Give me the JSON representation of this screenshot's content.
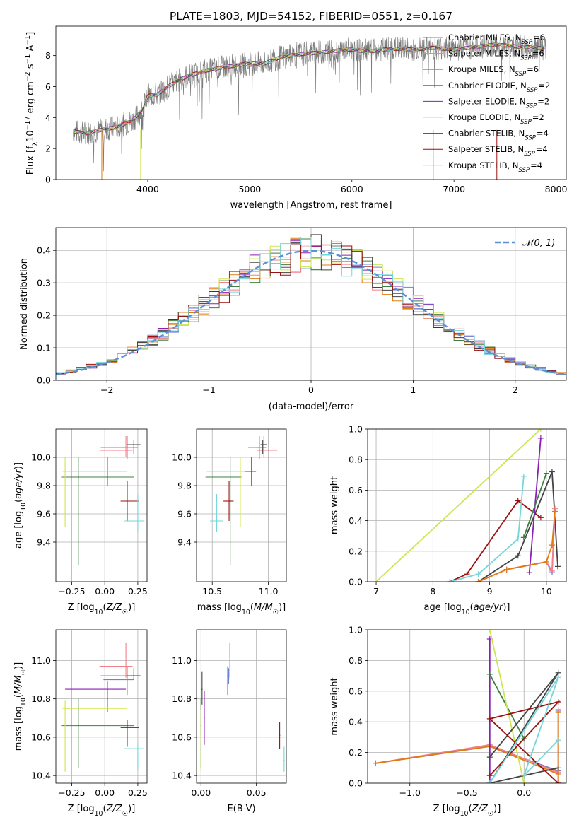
{
  "figure_title": "PLATE=1803, MJD=54152, FIBERID=0551, z=0.167",
  "colors": {
    "chabrier_miles": "#6b83d6",
    "salpeter_miles": "#f07f8a",
    "kroupa_miles": "#e07b12",
    "chabrier_elodie": "#3f7f3f",
    "salpeter_elodie": "#8b1fb5",
    "kroupa_elodie": "#cde64d",
    "chabrier_stelib": "#444444",
    "salpeter_stelib": "#9a0f0f",
    "kroupa_stelib": "#76d5d8",
    "normal_curve": "#5b8fd6",
    "grid": "#b0b0b0"
  },
  "legend_models": [
    {
      "key": "chabrier_miles",
      "label": "Chabrier MILES, N",
      "sub": "SSP",
      "suffix": "=6"
    },
    {
      "key": "salpeter_miles",
      "label": "Salpeter MILES, N",
      "sub": "SSP",
      "suffix": "=6"
    },
    {
      "key": "kroupa_miles",
      "label": "Kroupa MILES, N",
      "sub": "SSP",
      "suffix": "=6"
    },
    {
      "key": "chabrier_elodie",
      "label": "Chabrier ELODIE, N",
      "sub": "SSP",
      "suffix": "=2"
    },
    {
      "key": "salpeter_elodie",
      "label": "Salpeter ELODIE, N",
      "sub": "SSP",
      "suffix": "=2"
    },
    {
      "key": "kroupa_elodie",
      "label": "Kroupa ELODIE, N",
      "sub": "SSP",
      "suffix": "=2"
    },
    {
      "key": "chabrier_stelib",
      "label": "Chabrier STELIB, N",
      "sub": "SSP",
      "suffix": "=4"
    },
    {
      "key": "salpeter_stelib",
      "label": "Salpeter STELIB, N",
      "sub": "SSP",
      "suffix": "=4"
    },
    {
      "key": "kroupa_stelib",
      "label": "Kroupa STELIB, N",
      "sub": "SSP",
      "suffix": "=4"
    }
  ],
  "chart_data": [
    {
      "id": "spectrum",
      "type": "line",
      "xlabel": "wavelength [Angstrom, rest frame]",
      "ylabel": "Flux [f_λ 10^-17 erg cm^-2 s^-1 A^-1]",
      "xlim": [
        3100,
        8100
      ],
      "ylim": [
        0,
        9.9
      ],
      "xticks": [
        4000,
        5000,
        6000,
        7000,
        8000
      ],
      "yticks": [
        0,
        2,
        4,
        6,
        8
      ],
      "legend_position": "top-right",
      "grid": false,
      "continuum": {
        "x": [
          3270,
          3400,
          3550,
          3700,
          3850,
          3950,
          4000,
          4100,
          4200,
          4300,
          4400,
          4550,
          4700,
          4850,
          5000,
          5150,
          5300,
          5500,
          5700,
          5900,
          6000,
          6100,
          6200,
          6400,
          6600,
          6800,
          7000,
          7200,
          7400,
          7600,
          7800,
          7900
        ],
        "y": [
          3.1,
          3.0,
          3.2,
          3.4,
          3.8,
          4.5,
          5.4,
          5.5,
          6.0,
          6.4,
          6.7,
          7.0,
          7.2,
          7.35,
          7.5,
          7.5,
          7.9,
          8.1,
          8.2,
          8.35,
          8.4,
          8.3,
          8.3,
          8.45,
          8.4,
          8.5,
          8.4,
          8.55,
          8.7,
          8.6,
          8.5,
          8.5
        ]
      }
    },
    {
      "id": "residuals",
      "type": "step",
      "xlabel": "(data-model)/error",
      "ylabel": "Normed distribution",
      "xlim": [
        -2.5,
        2.5
      ],
      "ylim": [
        0,
        0.47
      ],
      "xticks": [
        -2,
        -1,
        0,
        1,
        2
      ],
      "yticks": [
        0.0,
        0.1,
        0.2,
        0.3,
        0.4
      ],
      "legend": [
        {
          "label": "𝒩(0, 1)",
          "style": "dashed"
        }
      ],
      "legend_position": "top-right",
      "grid": true,
      "bin_width": 0.1,
      "envelope": {
        "x": [
          -2.5,
          -2.0,
          -1.5,
          -1.0,
          -0.5,
          0.0,
          0.5,
          1.0,
          1.5,
          2.0,
          2.5
        ],
        "y": [
          0.018,
          0.054,
          0.13,
          0.242,
          0.352,
          0.399,
          0.352,
          0.242,
          0.13,
          0.054,
          0.018
        ]
      }
    },
    {
      "id": "age_vs_Z",
      "type": "errorbar",
      "xlabel": "Z [log10(Z/Z☉)]",
      "ylabel": "age [log10(age/yr)]",
      "xlim": [
        -0.37,
        0.32
      ],
      "ylim": [
        9.12,
        10.2
      ],
      "xticks": [
        -0.25,
        0.0,
        0.25
      ],
      "yticks": [
        9.4,
        9.6,
        9.8,
        10.0
      ],
      "grid": true,
      "points": [
        {
          "model": "chabrier_miles",
          "x": 0.17,
          "y": 10.07,
          "xerr": [
            0.2,
            0.08
          ],
          "yerr": [
            0.05,
            0.06
          ]
        },
        {
          "model": "salpeter_miles",
          "x": 0.16,
          "y": 10.05,
          "xerr": [
            0.2,
            0.05
          ],
          "yerr": [
            0.05,
            0.1
          ]
        },
        {
          "model": "kroupa_miles",
          "x": 0.17,
          "y": 10.07,
          "xerr": [
            0.2,
            0.06
          ],
          "yerr": [
            0.08,
            0.08
          ]
        },
        {
          "model": "chabrier_elodie",
          "x": -0.2,
          "y": 9.86,
          "xerr": [
            0.13,
            0.42
          ],
          "yerr": [
            0.62,
            0.14
          ]
        },
        {
          "model": "salpeter_elodie",
          "x": 0.02,
          "y": 9.9,
          "xerr": [
            0.32,
            0.14
          ],
          "yerr": [
            0.1,
            0.1
          ]
        },
        {
          "model": "kroupa_elodie",
          "x": -0.3,
          "y": 9.9,
          "xerr": [
            0.02,
            0.47
          ],
          "yerr": [
            0.39,
            0.1
          ]
        },
        {
          "model": "chabrier_stelib",
          "x": 0.22,
          "y": 10.09,
          "xerr": [
            0.05,
            0.05
          ],
          "yerr": [
            0.07,
            0.03
          ]
        },
        {
          "model": "salpeter_stelib",
          "x": 0.17,
          "y": 9.69,
          "xerr": [
            0.05,
            0.09
          ],
          "yerr": [
            0.14,
            0.14
          ]
        },
        {
          "model": "kroupa_stelib",
          "x": 0.25,
          "y": 9.55,
          "xerr": [
            0.1,
            0.05
          ],
          "yerr": [
            0.08,
            0.19
          ]
        }
      ]
    },
    {
      "id": "age_vs_mass",
      "type": "errorbar",
      "xlabel": "mass [log10(M/M☉)]",
      "ylabel": "",
      "xlim": [
        10.36,
        11.16
      ],
      "ylim": [
        9.12,
        10.2
      ],
      "xticks": [
        10.5,
        11.0
      ],
      "yticks": [
        9.4,
        9.6,
        9.8,
        10.0
      ],
      "grid": true,
      "points": [
        {
          "model": "chabrier_miles",
          "x": 10.92,
          "y": 10.07,
          "xerr": [
            0.02,
            0.06
          ],
          "yerr": [
            0.05,
            0.05
          ]
        },
        {
          "model": "salpeter_miles",
          "x": 10.96,
          "y": 10.05,
          "xerr": [
            0.06,
            0.12
          ],
          "yerr": [
            0.05,
            0.1
          ]
        },
        {
          "model": "kroupa_miles",
          "x": 10.92,
          "y": 10.07,
          "xerr": [
            0.1,
            0.05
          ],
          "yerr": [
            0.08,
            0.08
          ]
        },
        {
          "model": "chabrier_elodie",
          "x": 10.66,
          "y": 9.86,
          "xerr": [
            0.22,
            0.1
          ],
          "yerr": [
            0.62,
            0.14
          ]
        },
        {
          "model": "salpeter_elodie",
          "x": 10.85,
          "y": 9.9,
          "xerr": [
            0.12,
            0.04
          ],
          "yerr": [
            0.1,
            0.1
          ]
        },
        {
          "model": "kroupa_elodie",
          "x": 10.75,
          "y": 9.9,
          "xerr": [
            0.3,
            0.04
          ],
          "yerr": [
            0.39,
            0.1
          ]
        },
        {
          "model": "chabrier_stelib",
          "x": 10.95,
          "y": 10.09,
          "xerr": [
            0.02,
            0.04
          ],
          "yerr": [
            0.07,
            0.03
          ]
        },
        {
          "model": "salpeter_stelib",
          "x": 10.65,
          "y": 9.69,
          "xerr": [
            0.05,
            0.04
          ],
          "yerr": [
            0.14,
            0.14
          ]
        },
        {
          "model": "kroupa_stelib",
          "x": 10.54,
          "y": 9.55,
          "xerr": [
            0.06,
            0.06
          ],
          "yerr": [
            0.08,
            0.19
          ]
        }
      ]
    },
    {
      "id": "weight_vs_age",
      "type": "line",
      "xlabel": "age [log10(age/yr)]",
      "ylabel": "mass weight",
      "xlim": [
        6.85,
        10.35
      ],
      "ylim": [
        0.0,
        1.0
      ],
      "xticks": [
        7,
        8,
        9,
        10
      ],
      "yticks": [
        0.0,
        0.2,
        0.4,
        0.6,
        0.8,
        1.0
      ],
      "grid": true,
      "series": [
        {
          "model": "kroupa_elodie",
          "x": [
            7.0,
            9.9
          ],
          "y": [
            0.0,
            1.0
          ]
        },
        {
          "model": "salpeter_stelib",
          "x": [
            8.3,
            8.6,
            9.5,
            9.9
          ],
          "y": [
            0.0,
            0.05,
            0.53,
            0.42
          ]
        },
        {
          "model": "kroupa_stelib",
          "x": [
            8.3,
            8.8,
            9.5,
            9.6
          ],
          "y": [
            0.0,
            0.05,
            0.28,
            0.69
          ]
        },
        {
          "model": "chabrier_stelib",
          "x": [
            8.8,
            9.5,
            10.1,
            10.2
          ],
          "y": [
            0.0,
            0.17,
            0.72,
            0.1
          ]
        },
        {
          "model": "salpeter_elodie",
          "x": [
            9.7,
            9.9
          ],
          "y": [
            0.06,
            0.94
          ]
        },
        {
          "model": "chabrier_elodie",
          "x": [
            9.6,
            10.0
          ],
          "y": [
            0.29,
            0.71
          ]
        },
        {
          "model": "chabrier_miles",
          "x": [
            8.8,
            9.3,
            10.0,
            10.1,
            10.15
          ],
          "y": [
            0.0,
            0.08,
            0.13,
            0.06,
            0.47
          ]
        },
        {
          "model": "salpeter_miles",
          "x": [
            8.8,
            9.3,
            10.0,
            10.1,
            10.15
          ],
          "y": [
            0.0,
            0.08,
            0.13,
            0.07,
            0.48
          ]
        },
        {
          "model": "kroupa_miles",
          "x": [
            8.8,
            9.3,
            10.0,
            10.1,
            10.15
          ],
          "y": [
            0.0,
            0.08,
            0.13,
            0.24,
            0.46
          ]
        }
      ]
    },
    {
      "id": "mass_vs_Z",
      "type": "errorbar",
      "xlabel": "Z [log10(Z/Z☉)]",
      "ylabel": "mass [log10(M/M☉)]",
      "xlim": [
        -0.37,
        0.32
      ],
      "ylim": [
        10.36,
        11.16
      ],
      "xticks": [
        -0.25,
        0.0,
        0.25
      ],
      "yticks": [
        10.4,
        10.6,
        10.8,
        11.0
      ],
      "grid": true,
      "points": [
        {
          "model": "chabrier_miles",
          "x": 0.17,
          "y": 10.9,
          "xerr": [
            0.18,
            0.05
          ],
          "yerr": [
            0.02,
            0.06
          ]
        },
        {
          "model": "salpeter_miles",
          "x": 0.16,
          "y": 10.97,
          "xerr": [
            0.2,
            0.05
          ],
          "yerr": [
            0.06,
            0.12
          ]
        },
        {
          "model": "kroupa_miles",
          "x": 0.17,
          "y": 10.92,
          "xerr": [
            0.2,
            0.06
          ],
          "yerr": [
            0.1,
            0.05
          ]
        },
        {
          "model": "chabrier_elodie",
          "x": -0.2,
          "y": 10.66,
          "xerr": [
            0.13,
            0.42
          ],
          "yerr": [
            0.22,
            0.14
          ]
        },
        {
          "model": "salpeter_elodie",
          "x": 0.02,
          "y": 10.85,
          "xerr": [
            0.32,
            0.14
          ],
          "yerr": [
            0.12,
            0.04
          ]
        },
        {
          "model": "kroupa_elodie",
          "x": -0.3,
          "y": 10.75,
          "xerr": [
            0.02,
            0.47
          ],
          "yerr": [
            0.33,
            0.04
          ]
        },
        {
          "model": "chabrier_stelib",
          "x": 0.22,
          "y": 10.92,
          "xerr": [
            0.05,
            0.05
          ],
          "yerr": [
            0.02,
            0.04
          ]
        },
        {
          "model": "salpeter_stelib",
          "x": 0.17,
          "y": 10.65,
          "xerr": [
            0.05,
            0.09
          ],
          "yerr": [
            0.1,
            0.04
          ]
        },
        {
          "model": "kroupa_stelib",
          "x": 0.25,
          "y": 10.54,
          "xerr": [
            0.1,
            0.05
          ],
          "yerr": [
            0.11,
            0.03
          ]
        }
      ]
    },
    {
      "id": "mass_vs_ebv",
      "type": "errorbar",
      "xlabel": "E(B-V)",
      "ylabel": "",
      "xlim": [
        -0.004,
        0.077
      ],
      "ylim": [
        10.36,
        11.16
      ],
      "xticks": [
        0.0,
        0.05
      ],
      "yticks": [
        10.4,
        10.6,
        10.8,
        11.0
      ],
      "grid": true,
      "points": [
        {
          "model": "chabrier_miles",
          "x": 0.025,
          "y": 10.9,
          "xerr": [
            0,
            0
          ],
          "yerr": [
            0.02,
            0.06
          ]
        },
        {
          "model": "salpeter_miles",
          "x": 0.026,
          "y": 10.97,
          "xerr": [
            0,
            0
          ],
          "yerr": [
            0.06,
            0.12
          ]
        },
        {
          "model": "kroupa_miles",
          "x": 0.024,
          "y": 10.92,
          "xerr": [
            0,
            0
          ],
          "yerr": [
            0.1,
            0.05
          ]
        },
        {
          "model": "chabrier_elodie",
          "x": 0.0,
          "y": 10.66,
          "xerr": [
            0,
            0
          ],
          "yerr": [
            0.22,
            0.14
          ]
        },
        {
          "model": "salpeter_elodie",
          "x": 0.003,
          "y": 10.7,
          "xerr": [
            0,
            0
          ],
          "yerr": [
            0.14,
            0.14
          ]
        },
        {
          "model": "kroupa_elodie",
          "x": 0.0,
          "y": 10.6,
          "xerr": [
            0,
            0
          ],
          "yerr": [
            0.18,
            0.14
          ]
        },
        {
          "model": "chabrier_stelib",
          "x": 0.001,
          "y": 10.85,
          "xerr": [
            0,
            0
          ],
          "yerr": [
            0.08,
            0.09
          ]
        },
        {
          "model": "salpeter_stelib",
          "x": 0.071,
          "y": 10.61,
          "xerr": [
            0,
            0
          ],
          "yerr": [
            0.07,
            0.07
          ]
        },
        {
          "model": "kroupa_stelib",
          "x": 0.075,
          "y": 10.48,
          "xerr": [
            0,
            0
          ],
          "yerr": [
            0.06,
            0.07
          ]
        }
      ]
    },
    {
      "id": "weight_vs_Z",
      "type": "line",
      "xlabel": "Z [log10(Z/Z☉)]",
      "ylabel": "mass weight",
      "xlim": [
        -1.37,
        0.37
      ],
      "ylim": [
        0.0,
        1.0
      ],
      "xticks": [
        -1.0,
        -0.5,
        0.0
      ],
      "yticks": [
        0.0,
        0.2,
        0.4,
        0.6,
        0.8,
        1.0
      ],
      "grid": true,
      "series": [
        {
          "model": "chabrier_miles",
          "x": [
            -1.3,
            -0.3,
            0.3,
            0.3,
            0.3
          ],
          "y": [
            0.13,
            0.24,
            0.08,
            0.47,
            0.0
          ]
        },
        {
          "model": "salpeter_miles",
          "x": [
            -1.3,
            -0.3,
            0.3,
            0.3,
            0.3
          ],
          "y": [
            0.13,
            0.25,
            0.07,
            0.48,
            0.0
          ]
        },
        {
          "model": "kroupa_miles",
          "x": [
            -1.3,
            -0.3,
            0.3,
            0.3,
            0.3
          ],
          "y": [
            0.13,
            0.24,
            0.06,
            0.46,
            0.0
          ]
        },
        {
          "model": "salpeter_elodie",
          "x": [
            -0.3,
            -0.3
          ],
          "y": [
            0.94,
            0.0
          ]
        },
        {
          "model": "chabrier_elodie",
          "x": [
            -0.3,
            0.0
          ],
          "y": [
            0.71,
            0.29
          ]
        },
        {
          "model": "kroupa_elodie",
          "x": [
            -0.3,
            0.0
          ],
          "y": [
            1.0,
            0.0
          ]
        },
        {
          "model": "chabrier_stelib",
          "x": [
            -0.3,
            0.3,
            -0.3,
            0.3
          ],
          "y": [
            0.17,
            0.72,
            0.0,
            0.1
          ]
        },
        {
          "model": "salpeter_stelib",
          "x": [
            -0.3,
            0.3,
            -0.3,
            0.3
          ],
          "y": [
            0.05,
            0.53,
            0.42,
            0.0
          ]
        },
        {
          "model": "kroupa_stelib",
          "x": [
            -0.3,
            0.3,
            0.0,
            0.3
          ],
          "y": [
            0.0,
            0.69,
            0.05,
            0.28
          ]
        }
      ]
    }
  ]
}
